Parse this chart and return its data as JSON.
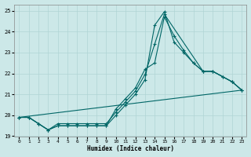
{
  "xlabel": "Humidex (Indice chaleur)",
  "bg_color": "#cce8e8",
  "grid_color": "#b0d4d4",
  "line_color": "#006666",
  "xlim": [
    -0.5,
    23.5
  ],
  "ylim": [
    19,
    25.3
  ],
  "yticks": [
    19,
    20,
    21,
    22,
    23,
    24,
    25
  ],
  "xticks": [
    0,
    1,
    2,
    3,
    4,
    5,
    6,
    7,
    8,
    9,
    10,
    11,
    12,
    13,
    14,
    15,
    16,
    17,
    18,
    19,
    20,
    21,
    22,
    23
  ],
  "line1_x": [
    0,
    1,
    2,
    3,
    4,
    5,
    6,
    7,
    8,
    9,
    10,
    11,
    12,
    13,
    14,
    15,
    16,
    17,
    18,
    19,
    20,
    21,
    22,
    23
  ],
  "line1_y": [
    19.9,
    19.9,
    19.6,
    19.3,
    19.5,
    19.5,
    19.5,
    19.5,
    19.5,
    19.5,
    20.3,
    20.8,
    21.3,
    22.2,
    22.5,
    24.7,
    23.8,
    23.1,
    22.5,
    22.1,
    22.1,
    21.85,
    21.6,
    21.2
  ],
  "line2_x": [
    0,
    1,
    2,
    3,
    4,
    5,
    6,
    7,
    8,
    9,
    10,
    11,
    12,
    13,
    14,
    15,
    16,
    17,
    18,
    19,
    20,
    21,
    22,
    23
  ],
  "line2_y": [
    19.9,
    19.9,
    19.6,
    19.3,
    19.5,
    19.5,
    19.5,
    19.5,
    19.5,
    19.5,
    20.0,
    20.5,
    21.0,
    21.7,
    24.3,
    24.95,
    23.5,
    23.0,
    22.5,
    22.1,
    22.1,
    21.85,
    21.6,
    21.2
  ],
  "line3_x": [
    0,
    1,
    2,
    3,
    4,
    5,
    6,
    7,
    8,
    9,
    10,
    11,
    12,
    13,
    14,
    15,
    19,
    20,
    22,
    23
  ],
  "line3_y": [
    19.9,
    19.9,
    19.6,
    19.3,
    19.6,
    19.6,
    19.6,
    19.6,
    19.6,
    19.6,
    20.15,
    20.65,
    21.15,
    21.95,
    23.4,
    24.83,
    22.1,
    22.1,
    21.6,
    21.2
  ],
  "line4_x": [
    0,
    23
  ],
  "line4_y": [
    19.9,
    21.2
  ]
}
